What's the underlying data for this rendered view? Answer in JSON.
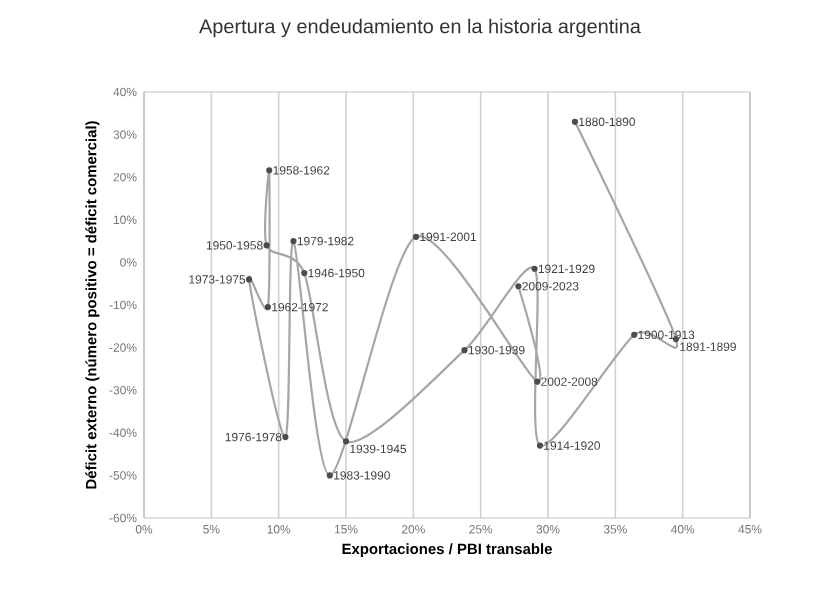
{
  "chart_data": {
    "type": "line",
    "title": "Apertura y endeudamiento en la historia argentina",
    "xlabel": "Exportaciones / PBI transable",
    "ylabel": "Déficit externo (número positivo = déficit comercial)",
    "x": [
      32,
      39.5,
      36.4,
      29.4,
      29,
      23.8,
      15,
      11.9,
      9.1,
      9.3,
      9.2,
      7.8,
      10.5,
      11.1,
      13.8,
      20.2,
      29.2,
      27.8
    ],
    "series": [
      {
        "color": "#a6a6a6",
        "values": [
          33,
          -18,
          -17,
          -43,
          -1.5,
          -20.6,
          -42,
          -2.5,
          4,
          21.6,
          -10.5,
          -4,
          -41,
          5,
          -50,
          6,
          -28,
          -5.6
        ]
      }
    ],
    "marker": "circle",
    "grid": "x",
    "xlim": [
      0,
      45
    ],
    "ylim": [
      -60,
      40
    ],
    "xticks": [
      {
        "value": 0,
        "label": "0%"
      },
      {
        "value": 5,
        "label": "5%"
      },
      {
        "value": 10,
        "label": "10%"
      },
      {
        "value": 15,
        "label": "15%"
      },
      {
        "value": 20,
        "label": "20%"
      },
      {
        "value": 25,
        "label": "25%"
      },
      {
        "value": 30,
        "label": "30%"
      },
      {
        "value": 35,
        "label": "35%"
      },
      {
        "value": 40,
        "label": "40%"
      },
      {
        "value": 45,
        "label": "45%"
      }
    ],
    "yticks": [
      {
        "value": -60,
        "label": "-60%"
      },
      {
        "value": -50,
        "label": "-50%"
      },
      {
        "value": -40,
        "label": "-40%"
      },
      {
        "value": -30,
        "label": "-30%"
      },
      {
        "value": -20,
        "label": "-20%"
      },
      {
        "value": -10,
        "label": "-10%"
      },
      {
        "value": 0,
        "label": "0%"
      },
      {
        "value": 10,
        "label": "10%"
      },
      {
        "value": 20,
        "label": "20%"
      },
      {
        "value": 30,
        "label": "30%"
      },
      {
        "value": 40,
        "label": "40%"
      }
    ],
    "annotations": [
      {
        "text": "1880-1890",
        "x": 32,
        "y": 33
      },
      {
        "text": "1891-1899",
        "x": 39.5,
        "y": -18
      },
      {
        "text": "1900-1913",
        "x": 36.4,
        "y": -17
      },
      {
        "text": "1914-1920",
        "x": 29.4,
        "y": -43
      },
      {
        "text": "1921-1929",
        "x": 29,
        "y": -1.5
      },
      {
        "text": "1930-1939",
        "x": 23.8,
        "y": -20.6
      },
      {
        "text": "1939-1945",
        "x": 15,
        "y": -42
      },
      {
        "text": "1946-1950",
        "x": 11.9,
        "y": -2.5
      },
      {
        "text": "1950-1958",
        "x": 9.1,
        "y": 4
      },
      {
        "text": "1958-1962",
        "x": 9.3,
        "y": 21.6
      },
      {
        "text": "1962-1972",
        "x": 9.2,
        "y": -10.5
      },
      {
        "text": "1973-1975",
        "x": 7.8,
        "y": -4
      },
      {
        "text": "1976-1978",
        "x": 10.5,
        "y": -41
      },
      {
        "text": "1979-1982",
        "x": 11.1,
        "y": 5
      },
      {
        "text": "1983-1990",
        "x": 13.8,
        "y": -50
      },
      {
        "text": "1991-2001",
        "x": 20.2,
        "y": 6
      },
      {
        "text": "2002-2008",
        "x": 29.2,
        "y": -28
      },
      {
        "text": "2009-2023",
        "x": 27.8,
        "y": -5.6
      }
    ]
  }
}
